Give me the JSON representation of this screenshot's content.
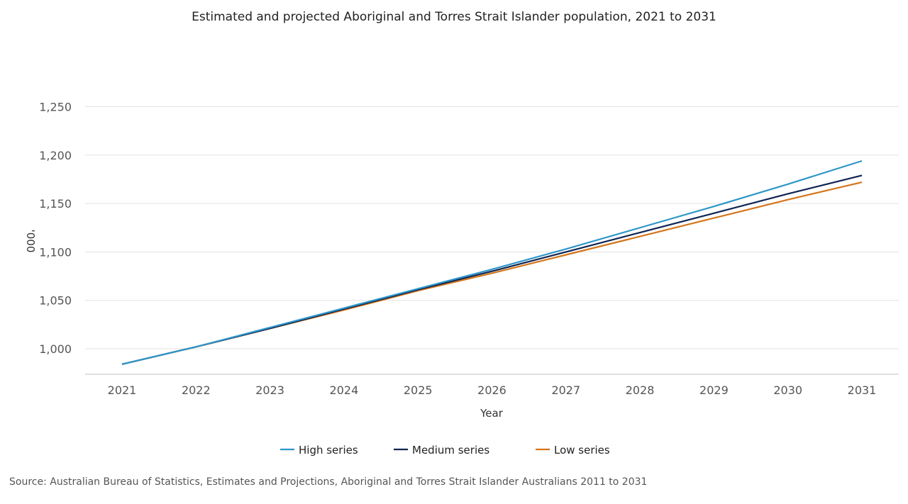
{
  "chart_data": {
    "type": "line",
    "title": "Estimated and projected Aboriginal and Torres Strait Islander population, 2021 to 2031",
    "xlabel": "Year",
    "ylabel": "'000",
    "x": [
      2021,
      2022,
      2023,
      2024,
      2025,
      2026,
      2027,
      2028,
      2029,
      2030,
      2031
    ],
    "yticks": [
      "1,000",
      "1,050",
      "1,100",
      "1,150",
      "1,200",
      "1,250"
    ],
    "ytick_values": [
      1000,
      1050,
      1100,
      1150,
      1200,
      1250
    ],
    "ylim": [
      973.5,
      1265
    ],
    "grid": true,
    "legend": "bottom",
    "series": [
      {
        "name": "High series",
        "color": "#2e96c9",
        "values": [
          984,
          1002,
          1022,
          1042,
          1062,
          1082,
          1103,
          1125,
          1147,
          1170,
          1194
        ]
      },
      {
        "name": "Medium series",
        "color": "#0f2552",
        "values": [
          984,
          1002,
          1021,
          1041,
          1061,
          1080,
          1100,
          1120,
          1140,
          1160,
          1179
        ]
      },
      {
        "name": "Low series",
        "color": "#d3761a",
        "values": [
          984,
          1002,
          1021,
          1040,
          1060,
          1078,
          1097,
          1116,
          1135,
          1154,
          1172
        ]
      }
    ]
  },
  "source": "Source: Australian Bureau of Statistics, Estimates and Projections, Aboriginal and Torres Strait Islander Australians 2011 to 2031"
}
